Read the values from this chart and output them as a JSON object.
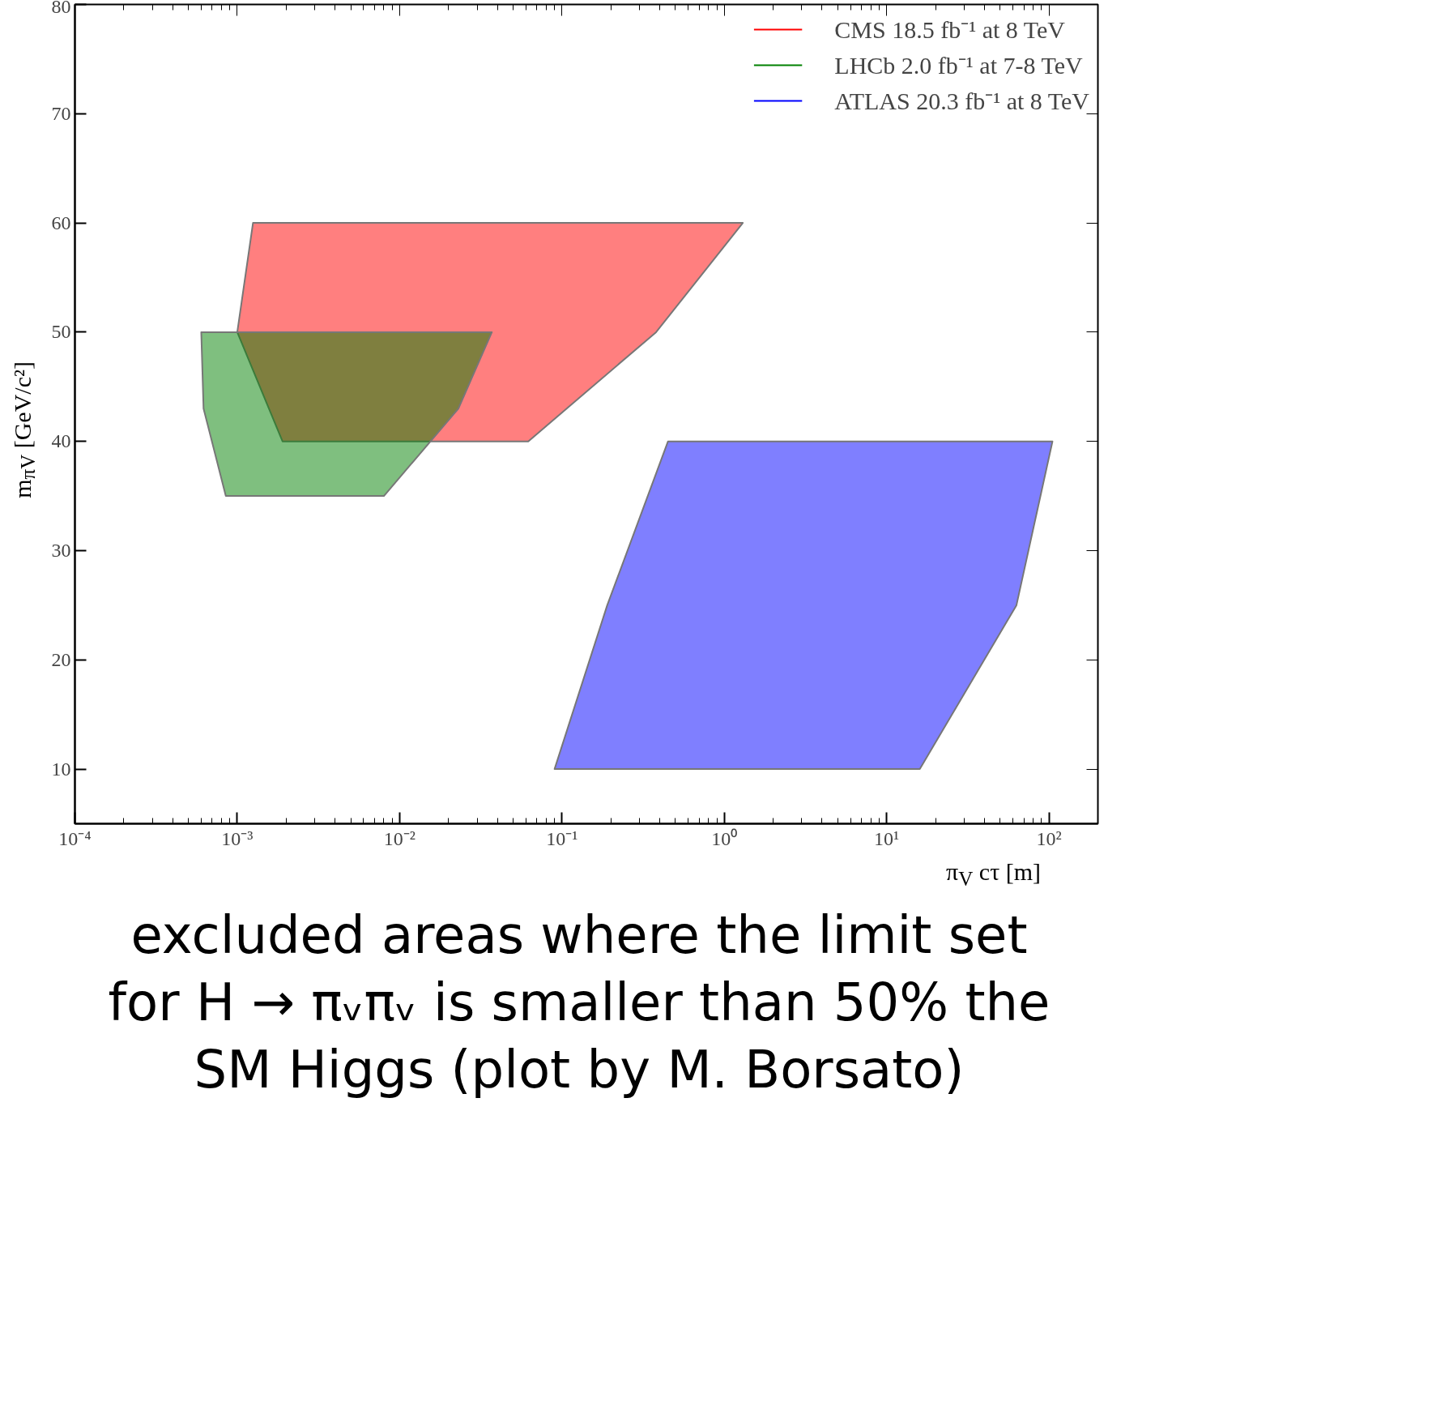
{
  "chart_data": {
    "type": "area",
    "xlabel": "π$_{V}$ cτ [m]",
    "ylabel": "m$_{πV}$ [GeV/c²]",
    "annotations": [
      "excluded areas where the limit set for H → πᵥπᵥ is smaller than 50% the SM Higgs (plot by M. Borsato)"
    ],
    "log": "x",
    "xlim": [
      0.0001,
      200
    ],
    "ylim": [
      5,
      80
    ],
    "xticks": [
      {
        "value": 0.0001,
        "label": "10⁻⁴"
      },
      {
        "value": 0.001,
        "label": "10⁻³"
      },
      {
        "value": 0.01,
        "label": "10⁻²"
      },
      {
        "value": 0.1,
        "label": "10⁻¹"
      },
      {
        "value": 1,
        "label": "10⁰"
      },
      {
        "value": 10,
        "label": "10¹"
      },
      {
        "value": 100,
        "label": "10²"
      }
    ],
    "yticks": [
      10,
      20,
      30,
      40,
      50,
      60,
      70,
      80
    ],
    "grid": false,
    "legend": "top right",
    "series": [
      {
        "name": "CMS 18.5 fb⁻¹ at 8 TeV",
        "color": "#ff0000",
        "x": [
          0.00125,
          1.3,
          0.38,
          0.062,
          0.0019,
          0.001
        ],
        "values": [
          60,
          60,
          50,
          40,
          40,
          50
        ]
      },
      {
        "name": "LHCb 2.0 fb⁻¹ at 7-8 TeV",
        "color": "#008000",
        "x": [
          0.0006,
          0.037,
          0.023,
          0.008,
          0.00085,
          0.00062
        ],
        "values": [
          50,
          50,
          43,
          35,
          35,
          43
        ]
      },
      {
        "name": "ATLAS 20.3 fb⁻¹ at 8 TeV",
        "color": "#0000ff",
        "x": [
          0.45,
          105,
          63,
          16,
          0.09,
          0.19
        ],
        "values": [
          40,
          40,
          25,
          10,
          10,
          25
        ]
      }
    ]
  }
}
